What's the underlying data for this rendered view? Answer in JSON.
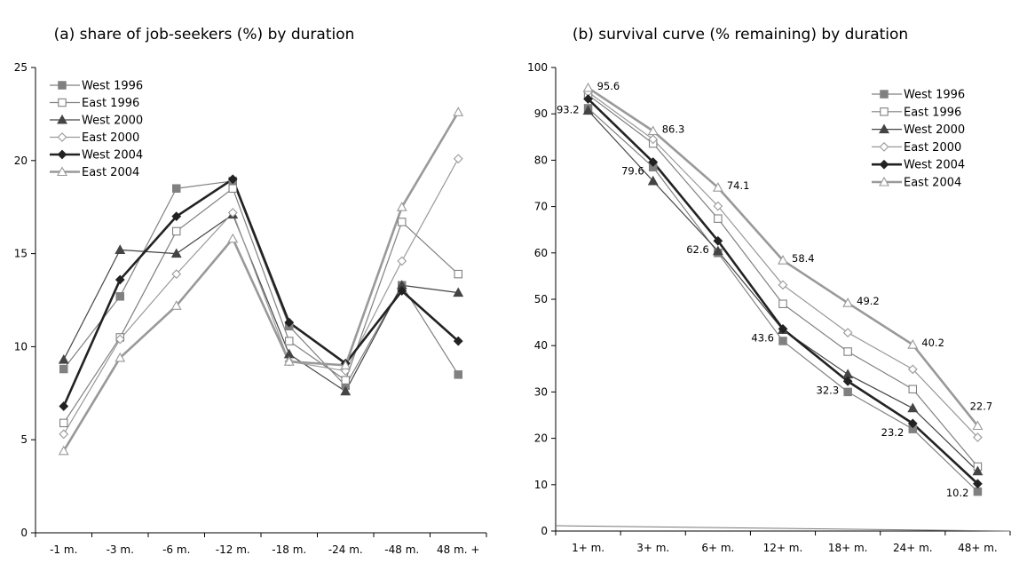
{
  "chart_data": [
    {
      "type": "line",
      "title": "(a) share of job-seekers (%) by duration",
      "categories": [
        "-1 m.",
        "-3 m.",
        "-6 m.",
        "-12 m.",
        "-18 m.",
        "-24 m.",
        "-48 m.",
        "48 m. +"
      ],
      "ylim": [
        0,
        25
      ],
      "yticks": [
        0,
        5,
        10,
        15,
        20,
        25
      ],
      "grid": false,
      "legend_position": "top-left",
      "series": [
        {
          "name": "West 1996",
          "values": [
            8.8,
            12.7,
            18.5,
            18.9,
            11.1,
            7.9,
            13.3,
            8.5
          ],
          "color": "#808080",
          "marker": "square-filled",
          "line_width": 1.2
        },
        {
          "name": "East 1996",
          "values": [
            5.9,
            10.5,
            16.2,
            18.5,
            10.3,
            8.2,
            16.7,
            13.9
          ],
          "color": "#808080",
          "marker": "square-open",
          "line_width": 1.2
        },
        {
          "name": "West 2000",
          "values": [
            9.3,
            15.2,
            15.0,
            17.1,
            9.6,
            7.6,
            13.3,
            12.9
          ],
          "color": "#444444",
          "marker": "triangle-filled",
          "line_width": 1.2
        },
        {
          "name": "East 2000",
          "values": [
            5.3,
            10.4,
            13.9,
            17.2,
            9.2,
            8.7,
            14.6,
            20.1
          ],
          "color": "#999999",
          "marker": "diamond-open",
          "line_width": 1.2
        },
        {
          "name": "West 2004",
          "values": [
            6.8,
            13.6,
            17.0,
            19.0,
            11.3,
            9.1,
            13.0,
            10.3
          ],
          "color": "#222222",
          "marker": "diamond-filled",
          "line_width": 2.6
        },
        {
          "name": "East 2004",
          "values": [
            4.4,
            9.4,
            12.2,
            15.8,
            9.2,
            9.0,
            17.5,
            22.6
          ],
          "color": "#999999",
          "marker": "triangle-open",
          "line_width": 2.6
        }
      ]
    },
    {
      "type": "line",
      "title": "(b) survival curve (%  remaining) by duration",
      "categories": [
        "1+ m.",
        "3+ m.",
        "6+ m.",
        "12+ m.",
        "18+ m.",
        "24+ m.",
        "48+ m."
      ],
      "ylim": [
        0,
        100
      ],
      "yticks": [
        0,
        10,
        20,
        30,
        40,
        50,
        60,
        70,
        80,
        90,
        100
      ],
      "grid": false,
      "legend_position": "top-right",
      "series": [
        {
          "name": "West 1996",
          "values": [
            91.2,
            78.5,
            60.0,
            41.0,
            30.0,
            22.0,
            8.5
          ],
          "color": "#808080",
          "marker": "square-filled",
          "line_width": 1.2
        },
        {
          "name": "East 1996",
          "values": [
            94.1,
            83.6,
            67.4,
            49.0,
            38.7,
            30.6,
            13.9
          ],
          "color": "#808080",
          "marker": "square-open",
          "line_width": 1.2
        },
        {
          "name": "West 2000",
          "values": [
            90.7,
            75.5,
            60.4,
            43.4,
            33.8,
            26.5,
            12.9
          ],
          "color": "#444444",
          "marker": "triangle-filled",
          "line_width": 1.2
        },
        {
          "name": "East 2000",
          "values": [
            94.7,
            84.5,
            70.1,
            53.1,
            42.8,
            34.9,
            20.2
          ],
          "color": "#999999",
          "marker": "diamond-open",
          "line_width": 1.2
        },
        {
          "name": "West 2004",
          "values": [
            93.2,
            79.6,
            62.6,
            43.6,
            32.3,
            23.2,
            10.2
          ],
          "color": "#222222",
          "marker": "diamond-filled",
          "line_width": 2.6
        },
        {
          "name": "East 2004",
          "values": [
            95.6,
            86.3,
            74.1,
            58.4,
            49.2,
            40.2,
            22.7
          ],
          "color": "#999999",
          "marker": "triangle-open",
          "line_width": 2.6
        }
      ],
      "data_labels": [
        {
          "category": "1+ m.",
          "text": "95.6",
          "series": "East 2004"
        },
        {
          "category": "1+ m.",
          "text": "93.2",
          "series": "West 2004"
        },
        {
          "category": "3+ m.",
          "text": "86.3",
          "series": "East 2004"
        },
        {
          "category": "3+ m.",
          "text": "79.6",
          "series": "West 2004"
        },
        {
          "category": "6+ m.",
          "text": "74.1",
          "series": "East 2004"
        },
        {
          "category": "6+ m.",
          "text": "62.6",
          "series": "West 2004"
        },
        {
          "category": "12+ m.",
          "text": "58.4",
          "series": "East 2004"
        },
        {
          "category": "12+ m.",
          "text": "43.6",
          "series": "West 2004"
        },
        {
          "category": "18+ m.",
          "text": "49.2",
          "series": "East 2004"
        },
        {
          "category": "18+ m.",
          "text": "32.3",
          "series": "West 2004"
        },
        {
          "category": "24+ m.",
          "text": "40.2",
          "series": "East 2004"
        },
        {
          "category": "24+ m.",
          "text": "23.2",
          "series": "West 2004"
        },
        {
          "category": "48+ m.",
          "text": "22.7",
          "series": "East 2004"
        },
        {
          "category": "48+ m.",
          "text": "10.2",
          "series": "West 2004"
        }
      ]
    }
  ]
}
